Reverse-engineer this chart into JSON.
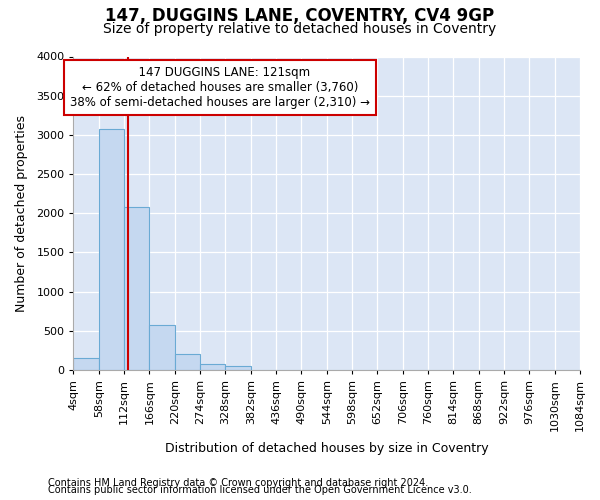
{
  "title": "147, DUGGINS LANE, COVENTRY, CV4 9GP",
  "subtitle": "Size of property relative to detached houses in Coventry",
  "xlabel": "Distribution of detached houses by size in Coventry",
  "ylabel": "Number of detached properties",
  "footer1": "Contains HM Land Registry data © Crown copyright and database right 2024.",
  "footer2": "Contains public sector information licensed under the Open Government Licence v3.0.",
  "annotation_title": "147 DUGGINS LANE: 121sqm",
  "annotation_line1": "← 62% of detached houses are smaller (3,760)",
  "annotation_line2": "38% of semi-detached houses are larger (2,310) →",
  "bin_edges": [
    4,
    58,
    112,
    166,
    220,
    274,
    328,
    382,
    436,
    490,
    544,
    598,
    652,
    706,
    760,
    814,
    868,
    922,
    976,
    1030,
    1084
  ],
  "bin_labels": [
    "4sqm",
    "58sqm",
    "112sqm",
    "166sqm",
    "220sqm",
    "274sqm",
    "328sqm",
    "382sqm",
    "436sqm",
    "490sqm",
    "544sqm",
    "598sqm",
    "652sqm",
    "706sqm",
    "760sqm",
    "814sqm",
    "868sqm",
    "922sqm",
    "976sqm",
    "1030sqm",
    "1084sqm"
  ],
  "bar_values": [
    155,
    3070,
    2080,
    570,
    205,
    70,
    50,
    0,
    0,
    0,
    0,
    0,
    0,
    0,
    0,
    0,
    0,
    0,
    0,
    0
  ],
  "bar_color": "#c5d8f0",
  "bar_edge_color": "#6aaad4",
  "vline_x": 121,
  "vline_color": "#cc0000",
  "ylim": [
    0,
    4000
  ],
  "yticks": [
    0,
    500,
    1000,
    1500,
    2000,
    2500,
    3000,
    3500,
    4000
  ],
  "background_color": "#ffffff",
  "plot_background_color": "#dce6f5",
  "grid_color": "#ffffff",
  "annotation_box_color": "#ffffff",
  "annotation_box_edge": "#cc0000",
  "title_fontsize": 12,
  "subtitle_fontsize": 10,
  "axis_label_fontsize": 9,
  "tick_fontsize": 8,
  "footer_fontsize": 7
}
